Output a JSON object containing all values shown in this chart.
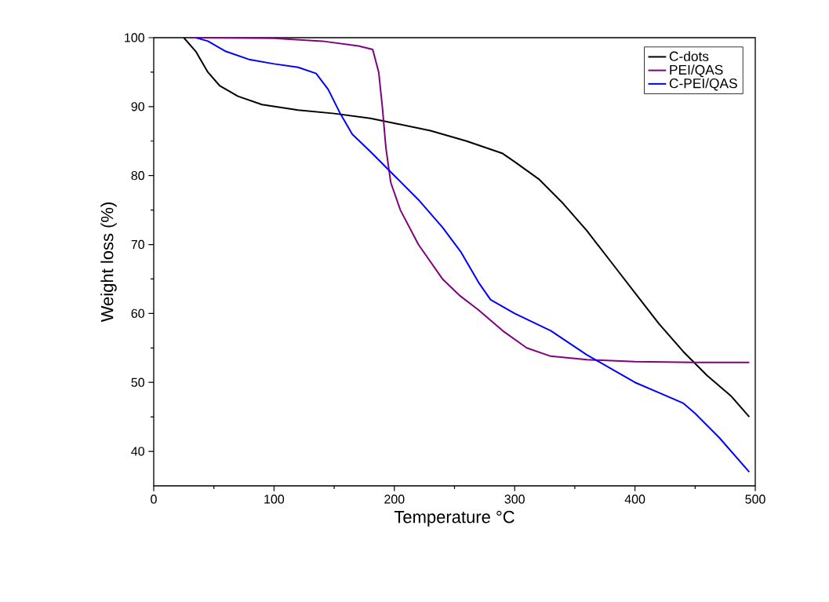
{
  "chart_data": {
    "type": "line",
    "xlabel": "Temperature °C",
    "ylabel": "Weight loss (%)",
    "xlim": [
      0,
      500
    ],
    "ylim": [
      35,
      100
    ],
    "xticks": [
      0,
      100,
      200,
      300,
      400,
      500
    ],
    "yticks": [
      40,
      50,
      60,
      70,
      80,
      90,
      100
    ],
    "legend": "top right",
    "grid": false,
    "line_style": "solid",
    "marker": "none",
    "series": [
      {
        "name": "C-dots",
        "color": "#000000",
        "x": [
          25,
          35,
          45,
          55,
          70,
          90,
          120,
          150,
          180,
          200,
          230,
          260,
          280,
          290,
          300,
          320,
          340,
          360,
          380,
          400,
          420,
          440,
          460,
          480,
          495
        ],
        "values": [
          100,
          98,
          95,
          93,
          91.5,
          90.3,
          89.5,
          89,
          88.3,
          87.6,
          86.5,
          85,
          83.8,
          83.2,
          82,
          79.5,
          76,
          72,
          67.5,
          63,
          58.5,
          54.5,
          51,
          48,
          45
        ]
      },
      {
        "name": "PEI/QAS",
        "color": "#800080",
        "x": [
          30,
          100,
          140,
          170,
          182,
          187,
          190,
          193,
          197,
          205,
          220,
          240,
          255,
          270,
          290,
          310,
          330,
          360,
          400,
          450,
          495
        ],
        "values": [
          100,
          99.9,
          99.5,
          98.8,
          98.3,
          95,
          90,
          84,
          79,
          75,
          70,
          65,
          62.5,
          60.5,
          57.5,
          55,
          53.8,
          53.3,
          53,
          52.9,
          52.9
        ]
      },
      {
        "name": "C-PEI/QAS",
        "color": "#0000ff",
        "x": [
          35,
          45,
          60,
          80,
          100,
          120,
          135,
          145,
          155,
          165,
          180,
          200,
          220,
          240,
          255,
          270,
          280,
          300,
          330,
          360,
          380,
          400,
          420,
          440,
          450,
          470,
          495
        ],
        "values": [
          100,
          99.5,
          98,
          96.8,
          96.2,
          95.7,
          94.8,
          92.5,
          89,
          86,
          83.5,
          80,
          76.5,
          72.5,
          69,
          64.5,
          62,
          60,
          57.5,
          54,
          52,
          50,
          48.5,
          47,
          45.5,
          42,
          37
        ]
      }
    ]
  }
}
